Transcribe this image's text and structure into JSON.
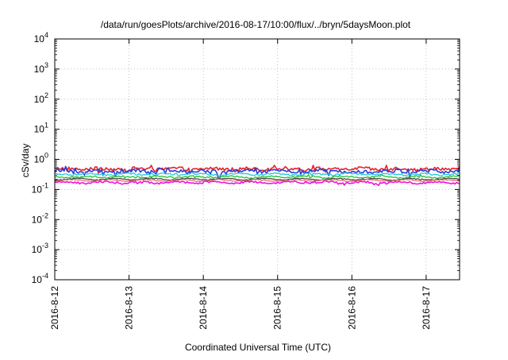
{
  "chart_data": {
    "type": "line",
    "title": "/data/run/goesPlots/archive/2016-08-17/10:00/flux/../bryn/5daysMoon.plot",
    "xlabel": "Coordinated Universal Time (UTC)",
    "ylabel": "cSv/day",
    "yscale": "log",
    "ylim_exponents": [
      -4,
      4
    ],
    "y_tick_exponents": [
      -4,
      -3,
      -2,
      -1,
      0,
      1,
      2,
      3,
      4
    ],
    "y_tick_base": "10",
    "xlim_days": [
      12,
      17.45
    ],
    "x_tick_labels": [
      "2016-8-12",
      "2016-8-13",
      "2016-8-14",
      "2016-8-15",
      "2016-8-16",
      "2016-8-17"
    ],
    "x_tick_days": [
      12,
      13,
      14,
      15,
      16,
      17
    ],
    "grid": true,
    "series": [
      {
        "color": "#e8202a",
        "base": 0.48,
        "amp": 0.08,
        "spike": 0.25
      },
      {
        "color": "#2a3cd8",
        "base": 0.4,
        "amp": 0.09,
        "spike": 0.3
      },
      {
        "color": "#20c8d8",
        "base": 0.32,
        "amp": 0.04,
        "spike": 0.1
      },
      {
        "color": "#22c033",
        "base": 0.26,
        "amp": 0.03,
        "spike": 0.08
      },
      {
        "color": "#444444",
        "base": 0.22,
        "amp": 0.02,
        "spike": 0.05
      },
      {
        "color": "#e87070",
        "base": 0.2,
        "amp": 0.02,
        "spike": 0.05
      },
      {
        "color": "#ee10e0",
        "base": 0.17,
        "amp": 0.04,
        "spike": 0.1
      }
    ]
  }
}
